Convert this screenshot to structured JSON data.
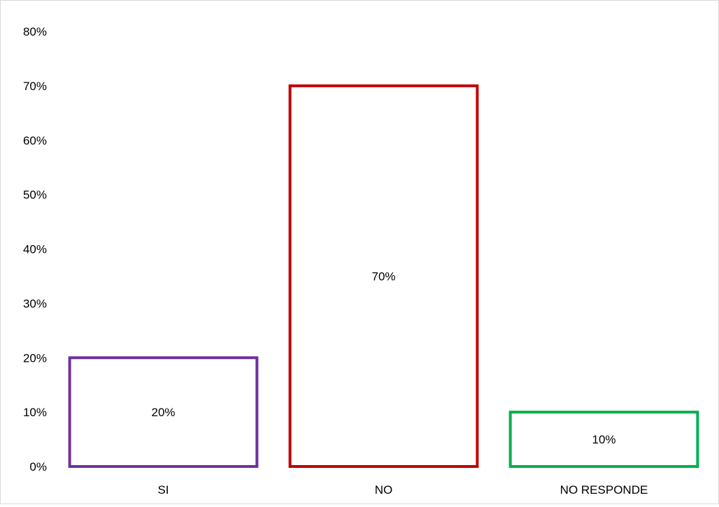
{
  "chart_data": {
    "type": "bar",
    "title": "",
    "xlabel": "",
    "ylabel": "",
    "categories": [
      "SI",
      "NO",
      "NO RESPONDE"
    ],
    "values": [
      0.2,
      0.7,
      0.1
    ],
    "value_labels": [
      "20%",
      "70%",
      "10%"
    ],
    "bar_colors": [
      "#7030a0",
      "#c00000",
      "#00b050"
    ],
    "bar_style": "outline",
    "ylim": [
      0,
      0.8
    ],
    "yticks": [
      0,
      0.1,
      0.2,
      0.3,
      0.4,
      0.5,
      0.6,
      0.7,
      0.8
    ],
    "ytick_labels": [
      "0%",
      "10%",
      "20%",
      "30%",
      "40%",
      "50%",
      "60%",
      "70%",
      "80%"
    ],
    "grid": false,
    "legend": "none"
  }
}
